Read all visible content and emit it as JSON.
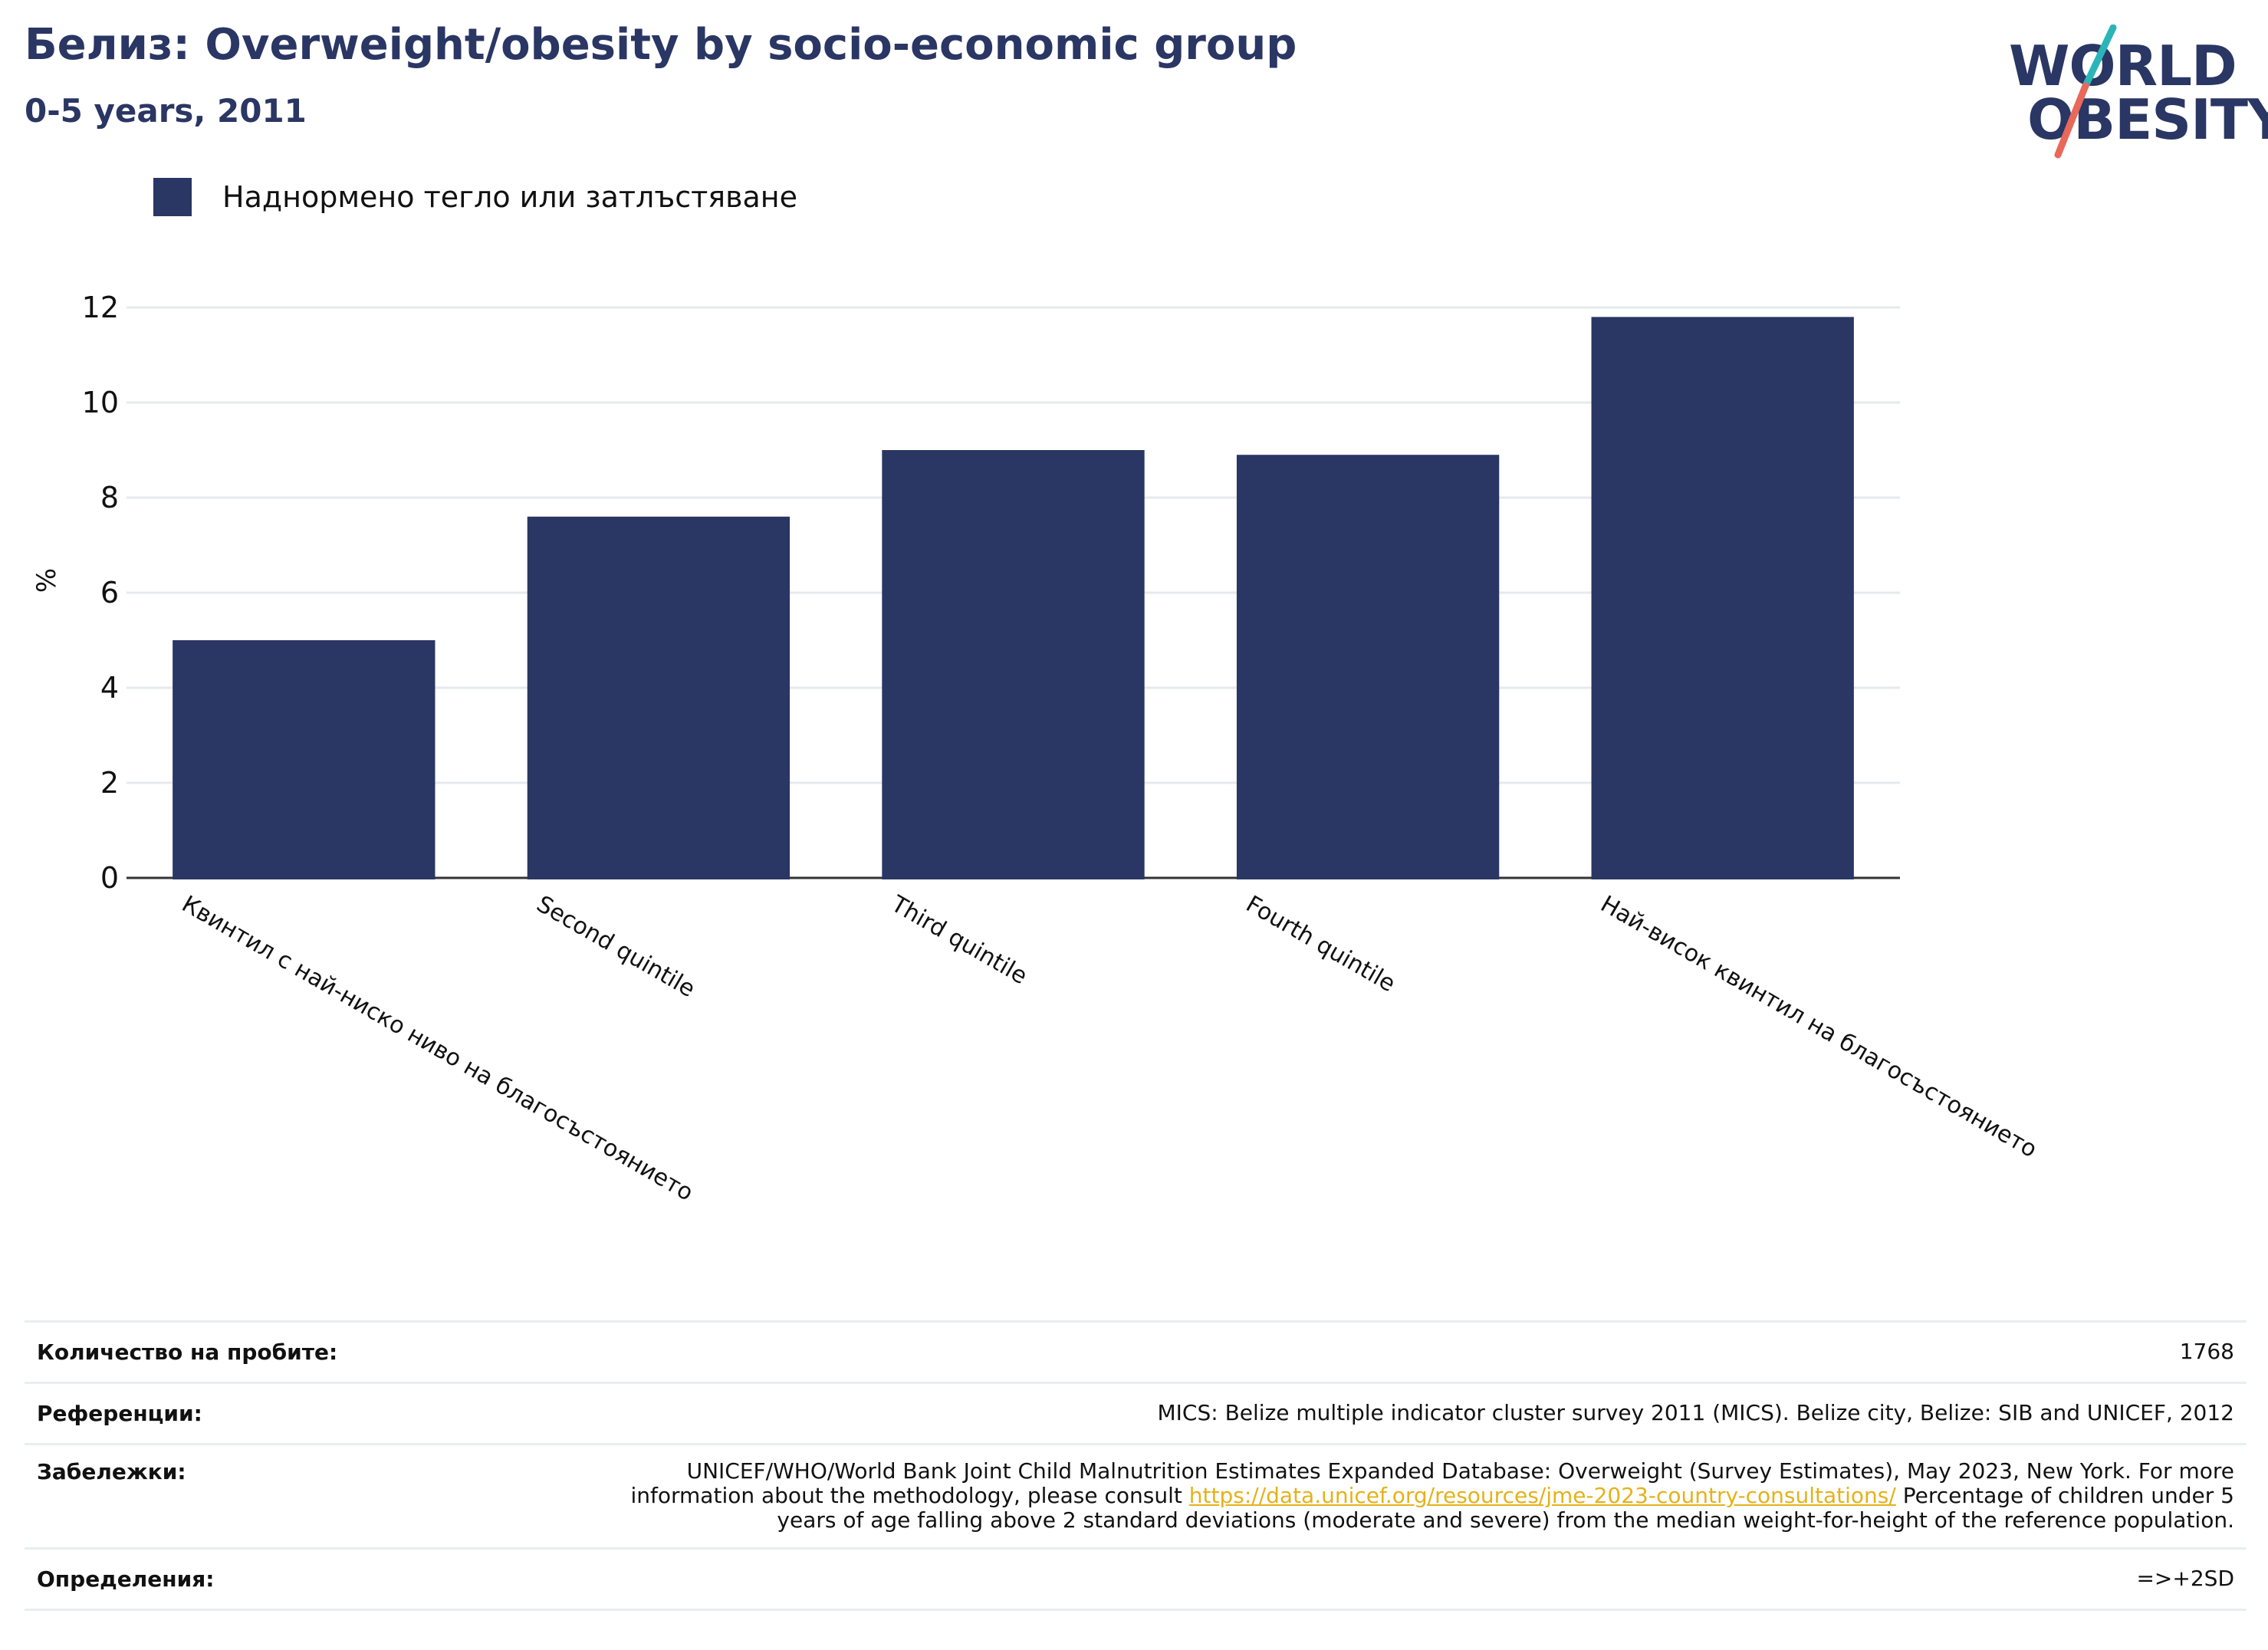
{
  "header": {
    "title": "Белиз: Overweight/obesity by socio-economic group",
    "subtitle": "0-5 years, 2011"
  },
  "logo": {
    "line1": "WORLD",
    "line2": "OBESITY",
    "colors": {
      "text": "#2a3663",
      "slash_top": "#2bb5b8",
      "slash_bottom": "#e8685a"
    }
  },
  "legend": {
    "label": "Наднормено тегло или затлъстяване",
    "color": "#2a3663"
  },
  "chart_data": {
    "type": "bar",
    "categories": [
      "Квинтил с най-ниско ниво на благосъстоянието",
      "Second quintile",
      "Third quintile",
      "Fourth quintile",
      "Най-висок квинтил на благосъстоянието"
    ],
    "series": [
      {
        "name": "Наднормено тегло или затлъстяване",
        "values": [
          5.0,
          7.6,
          9.0,
          8.9,
          11.8
        ],
        "color": "#2a3663"
      }
    ],
    "ylabel": "%",
    "xlabel": "",
    "ylim": [
      0,
      12.5
    ],
    "yticks": [
      0,
      2,
      4,
      6,
      8,
      10,
      12
    ],
    "grid": true,
    "legend_position": "top-left"
  },
  "meta": {
    "sample_label": "Количество на пробите:",
    "sample_value": "1768",
    "references_label": "Референции:",
    "references_value": "MICS: Belize multiple indicator cluster survey 2011 (MICS). Belize city, Belize: SIB and UNICEF, 2012",
    "notes_label": "Забележки:",
    "notes_before": "UNICEF/WHO/World Bank Joint Child Malnutrition Estimates Expanded Database: Overweight (Survey Estimates), May 2023, New York. For more information about the methodology, please consult ",
    "notes_link": "https://data.unicef.org/resources/jme-2023-country-consultations/",
    "notes_after": " Percentage of children under 5 years of age falling above 2 standard deviations (moderate and severe) from the median weight-for-height of the reference population.",
    "definitions_label": "Определения:",
    "definitions_value": "=>+2SD"
  }
}
